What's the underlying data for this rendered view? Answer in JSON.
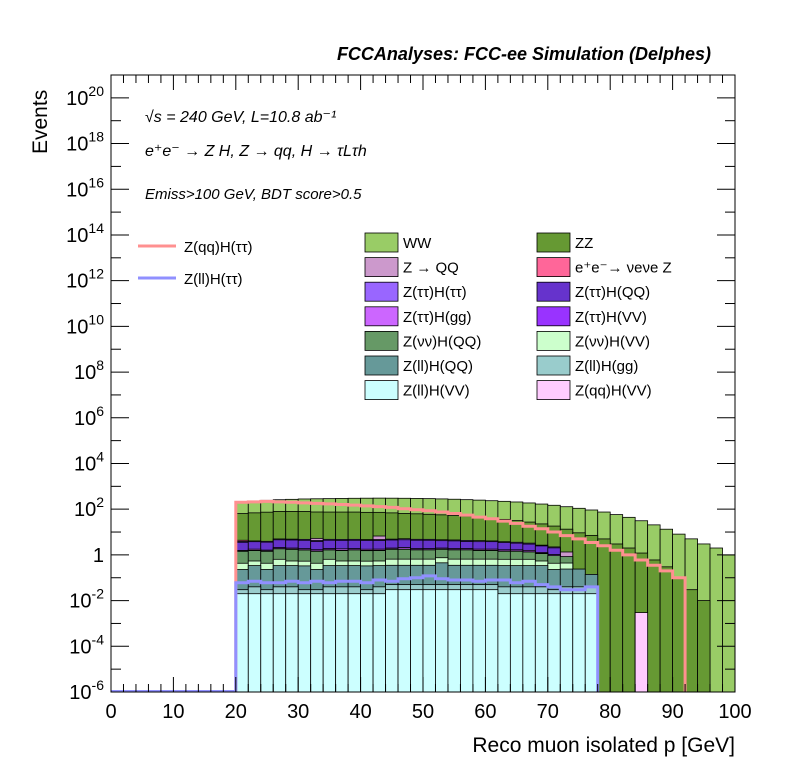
{
  "chart_data": {
    "type": "histogram-stacked",
    "title": "FCCAnalyses: FCC-ee Simulation (Delphes)",
    "xlabel": "Reco muon isolated p [GeV]",
    "ylabel": "Events",
    "xlim": [
      0,
      100
    ],
    "ylim": [
      1e-06,
      1e+21
    ],
    "y_scale": "log",
    "x_ticks": [
      "0",
      "10",
      "20",
      "30",
      "40",
      "50",
      "60",
      "70",
      "80",
      "90",
      "100"
    ],
    "y_ticks": [
      {
        "base": "10",
        "exp": "-6"
      },
      {
        "base": "10",
        "exp": "-4"
      },
      {
        "base": "10",
        "exp": "-2"
      },
      {
        "base": "1",
        "exp": ""
      },
      {
        "base": "10",
        "exp": "2"
      },
      {
        "base": "10",
        "exp": "4"
      },
      {
        "base": "10",
        "exp": "6"
      },
      {
        "base": "10",
        "exp": "8"
      },
      {
        "base": "10",
        "exp": "10"
      },
      {
        "base": "10",
        "exp": "12"
      },
      {
        "base": "10",
        "exp": "14"
      },
      {
        "base": "10",
        "exp": "16"
      },
      {
        "base": "10",
        "exp": "18"
      },
      {
        "base": "10",
        "exp": "20"
      }
    ],
    "annotations": {
      "line1": "√s = 240 GeV, L=10.8 ab⁻¹",
      "line2": "e⁺e⁻ → Z H, Z → qq, H → τLτh",
      "line3": "Emiss>100 GeV, BDT score>0.5"
    },
    "legend_placement": "top-center",
    "line_series": [
      {
        "name": "Z(qq)H(ττ)",
        "color": "#ff9090",
        "x": [
          20,
          22,
          24,
          26,
          28,
          30,
          32,
          34,
          36,
          38,
          40,
          42,
          44,
          46,
          48,
          50,
          52,
          54,
          56,
          58,
          60,
          62,
          64,
          66,
          68,
          70,
          72,
          74,
          76,
          78,
          80,
          82,
          84,
          86,
          88,
          90,
          92
        ],
        "values": [
          200.0,
          210.0,
          220.0,
          210.0,
          200.0,
          190.0,
          180.0,
          170.0,
          160.0,
          150.0,
          140.0,
          130.0,
          120.0,
          105.0,
          95,
          85,
          75,
          65,
          55,
          45,
          38,
          30,
          24,
          18,
          14,
          10,
          7,
          5,
          3.5,
          2.5,
          1.6,
          1.0,
          0.6,
          0.35,
          0.2,
          0.1,
          1e-06
        ]
      },
      {
        "name": "Z(ll)H(ττ)",
        "color": "#9090ff",
        "x": [
          20,
          22,
          24,
          26,
          28,
          30,
          32,
          34,
          36,
          38,
          40,
          42,
          44,
          46,
          48,
          50,
          52,
          54,
          56,
          58,
          60,
          62,
          64,
          66,
          68,
          70,
          72,
          74,
          76,
          78
        ],
        "values": [
          0.06,
          0.07,
          0.06,
          0.06,
          0.07,
          0.06,
          0.07,
          0.06,
          0.07,
          0.07,
          0.06,
          0.08,
          0.07,
          0.09,
          0.1,
          0.12,
          0.09,
          0.08,
          0.08,
          0.07,
          0.08,
          0.08,
          0.06,
          0.07,
          0.05,
          0.04,
          0.03,
          0.03,
          0.04,
          1e-06
        ]
      }
    ],
    "x_bins": [
      20,
      22,
      24,
      26,
      28,
      30,
      32,
      34,
      36,
      38,
      40,
      42,
      44,
      46,
      48,
      50,
      52,
      54,
      56,
      58,
      60,
      62,
      64,
      66,
      68,
      70,
      72,
      74,
      76,
      78,
      80,
      82,
      84,
      86,
      88,
      90,
      92,
      94,
      96,
      98,
      100
    ],
    "series": [
      {
        "name": "Z(qq)H(VV)",
        "color": "#ffccff",
        "values": [
          0,
          0,
          0,
          0,
          0,
          0,
          0,
          0,
          0,
          0,
          0,
          0,
          0,
          0,
          0,
          0,
          0,
          0,
          0,
          0,
          0,
          0,
          0,
          0,
          0,
          0,
          0,
          0,
          0,
          0,
          0,
          0,
          0.003,
          0,
          0,
          0,
          0,
          0,
          0,
          0
        ]
      },
      {
        "name": "Z(ll)H(VV)",
        "color": "#ccffff",
        "values": [
          0.02,
          0.02,
          0.02,
          0.02,
          0.02,
          0.02,
          0.02,
          0.02,
          0.02,
          0.02,
          0.02,
          0.02,
          0.03,
          0.03,
          0.03,
          0.03,
          0.03,
          0.03,
          0.03,
          0.03,
          0.03,
          0.02,
          0.02,
          0.02,
          0.02,
          0.02,
          0.02,
          0.02,
          0.02,
          0,
          0,
          0,
          0,
          0,
          0,
          0,
          0,
          0,
          0,
          0
        ]
      },
      {
        "name": "Z(ll)H(gg)",
        "color": "#99cccc",
        "values": [
          0.01,
          0.02,
          0.01,
          0.02,
          0.02,
          0.01,
          0.01,
          0.02,
          0.02,
          0.02,
          0.01,
          0.02,
          0.02,
          0.02,
          0.02,
          0.02,
          0.02,
          0.02,
          0.02,
          0.02,
          0.02,
          0.02,
          0.02,
          0.02,
          0.02,
          0.01,
          0.02,
          0.02,
          0.02,
          0,
          0,
          0,
          0,
          0,
          0,
          0,
          0,
          0,
          0,
          0
        ]
      },
      {
        "name": "Z(ll)H(QQ)",
        "color": "#669999",
        "values": [
          0.2,
          0.3,
          0.2,
          0.3,
          0.3,
          0.3,
          0.2,
          0.3,
          0.3,
          0.3,
          0.3,
          0.3,
          0.3,
          0.3,
          0.3,
          0.3,
          0.4,
          0.3,
          0.3,
          0.3,
          0.3,
          0.3,
          0.3,
          0.3,
          0.3,
          0.2,
          0.2,
          0.2,
          0.1,
          0,
          0,
          0,
          0,
          0,
          0,
          0,
          0,
          0,
          0,
          0
        ]
      },
      {
        "name": "Z(νν)H(VV)",
        "color": "#ccffcc",
        "values": [
          0.2,
          0.2,
          0.2,
          0.3,
          0.2,
          0.2,
          0.2,
          0.3,
          0.2,
          0.2,
          0.2,
          0.2,
          0.3,
          0.3,
          0.3,
          0.3,
          0.3,
          0.3,
          0.3,
          0.3,
          0.3,
          0.3,
          0.3,
          0.3,
          0.2,
          0.2,
          0.2,
          0,
          0,
          0,
          0,
          0,
          0,
          0,
          0,
          0,
          0,
          0,
          0,
          0
        ]
      },
      {
        "name": "Z(νν)H(QQ)",
        "color": "#669966",
        "values": [
          1,
          1,
          1,
          1.2,
          1.2,
          1.1,
          1,
          1,
          1,
          1.1,
          1,
          1,
          1.1,
          1.1,
          1,
          1,
          1,
          1,
          1,
          0.9,
          0.9,
          0.8,
          0.8,
          0.7,
          0.6,
          0.5,
          0.4,
          0,
          0,
          0,
          0,
          0,
          0,
          0,
          0,
          0,
          0,
          0,
          0,
          0
        ]
      },
      {
        "name": "Z(ττ)H(VV)",
        "color": "#9933ff",
        "values": [
          0.04,
          0.04,
          0.04,
          0.04,
          0.05,
          0.04,
          0.05,
          0.05,
          0.05,
          0.04,
          0.04,
          0.05,
          0.04,
          0.04,
          0.05,
          0.04,
          0.04,
          0.05,
          0.04,
          0.04,
          0.04,
          0.03,
          0.03,
          0.03,
          0.03,
          0,
          0,
          0,
          0,
          0,
          0,
          0,
          0,
          0,
          0,
          0,
          0,
          0,
          0,
          0
        ]
      },
      {
        "name": "Z(ττ)H(gg)",
        "color": "#cc66ff",
        "values": [
          0.1,
          0.2,
          0.15,
          0.2,
          0.2,
          0.2,
          0.2,
          0.2,
          0.25,
          0.2,
          0.2,
          0.2,
          0.2,
          0.3,
          0.2,
          0.2,
          0.2,
          0.2,
          0.2,
          0.2,
          0.2,
          0.2,
          0.2,
          0.2,
          0.1,
          0.1,
          0,
          0,
          0,
          0,
          0,
          0,
          0,
          0,
          0,
          0,
          0,
          0,
          0,
          0
        ]
      },
      {
        "name": "Z(ττ)H(QQ)",
        "color": "#6633cc",
        "values": [
          2,
          2,
          2,
          2.5,
          2.5,
          2.5,
          2.2,
          2.5,
          2.5,
          2.5,
          2.5,
          2.5,
          2.5,
          2.5,
          2.5,
          2.5,
          2.2,
          2.2,
          2,
          2,
          2,
          1.8,
          1.6,
          1.4,
          1.2,
          1,
          0,
          0,
          0,
          0,
          0,
          0,
          0,
          0,
          0,
          0,
          0,
          0,
          0,
          0
        ]
      },
      {
        "name": "Z(ττ)H(ττ)",
        "color": "#9966ff",
        "values": [
          0.3,
          0.3,
          0.3,
          0.4,
          0.4,
          0.4,
          0.4,
          0.4,
          0.4,
          0.4,
          0.4,
          0.4,
          0.4,
          0.5,
          0.4,
          0.4,
          0.4,
          0.4,
          0.4,
          0.4,
          0.3,
          0.3,
          0.3,
          0.3,
          0.2,
          0.2,
          0,
          0,
          0,
          0,
          0,
          0,
          0,
          0,
          0,
          0,
          0,
          0,
          0,
          0
        ]
      },
      {
        "name": "e⁺e⁻→ νeνe Z",
        "color": "#ff6699",
        "values": [
          0.5,
          0,
          0,
          0,
          0,
          0,
          0,
          0,
          0,
          0,
          0,
          0,
          0,
          0,
          0,
          0,
          0,
          0,
          0,
          0,
          0,
          0,
          0,
          0,
          0,
          0,
          0,
          0,
          0,
          0,
          0,
          0,
          0,
          0,
          0,
          0,
          0,
          0,
          0,
          0
        ]
      },
      {
        "name": "Z → QQ",
        "color": "#cc99cc",
        "values": [
          0,
          0,
          0,
          0,
          0,
          0,
          1,
          0,
          0,
          0,
          0,
          2,
          0,
          0,
          0,
          0,
          0,
          0,
          0,
          0,
          0,
          0,
          0,
          0,
          0,
          0,
          0.5,
          0,
          0,
          0,
          0,
          0,
          0,
          0,
          0,
          0,
          0,
          0,
          0,
          0
        ]
      },
      {
        "name": "ZZ",
        "color": "#669933",
        "values": [
          60,
          65,
          70,
          75,
          75,
          75,
          70,
          70,
          70,
          70,
          68,
          66,
          64,
          60,
          58,
          55,
          52,
          48,
          45,
          40,
          36,
          32,
          28,
          24,
          20,
          16,
          12,
          9,
          7,
          5,
          3,
          2,
          1.2,
          0.6,
          0.3,
          0.1,
          0.03,
          0.01,
          0,
          0
        ]
      },
      {
        "name": "WW",
        "color": "#99cc66",
        "values": [
          150,
          160,
          170,
          180,
          190,
          200,
          210,
          215,
          220,
          225,
          230,
          232,
          234,
          235,
          232,
          230,
          225,
          220,
          212,
          205,
          195,
          185,
          175,
          160,
          145,
          130,
          115,
          100,
          85,
          70,
          55,
          42,
          30,
          20,
          13,
          8,
          5,
          3,
          2,
          1
        ]
      }
    ]
  }
}
